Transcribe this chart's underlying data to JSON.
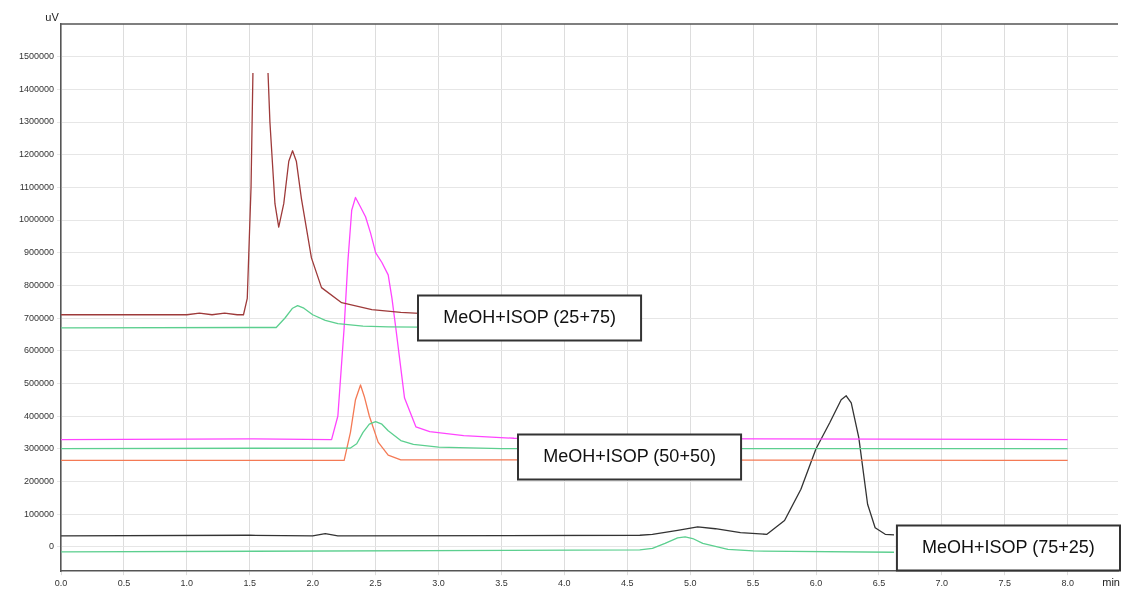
{
  "chart_data": {
    "type": "line",
    "xlabel": "min",
    "ylabel": "uV",
    "grid": true,
    "marker": "none",
    "line_style": "solid",
    "xlim": [
      0,
      8.4
    ],
    "ylim": [
      -75000,
      1600000
    ],
    "xticks": [
      {
        "value": 0,
        "label": "0.0"
      },
      0.5,
      {
        "value": 1,
        "label": "1.0"
      },
      1.5,
      {
        "value": 2,
        "label": "2.0"
      },
      2.5,
      {
        "value": 3,
        "label": "3.0"
      },
      3.5,
      {
        "value": 4,
        "label": "4.0"
      },
      4.5,
      {
        "value": 5,
        "label": "5.0"
      },
      5.5,
      {
        "value": 6,
        "label": "6.0"
      },
      6.5,
      {
        "value": 7,
        "label": "7.0"
      },
      7.5,
      {
        "value": 8,
        "label": "8.0"
      }
    ],
    "yticks": [
      0,
      100000,
      200000,
      300000,
      400000,
      500000,
      600000,
      700000,
      800000,
      900000,
      1000000,
      1100000,
      1200000,
      1300000,
      1400000,
      1500000
    ],
    "annotations": [
      "MeOH+ISOP (25+75)",
      "MeOH+ISOP (50+50)",
      "MeOH+ISOP (75+25)"
    ],
    "series": [
      {
        "color": "#9e3a3a",
        "x": [
          0,
          1.0,
          1.1,
          1.2,
          1.3,
          1.4,
          1.45,
          1.48,
          1.51,
          1.525,
          1.58,
          1.645,
          1.66,
          1.7,
          1.73,
          1.77,
          1.81,
          1.84,
          1.87,
          1.91,
          1.99,
          2.07,
          2.23,
          2.47,
          2.7,
          2.85
        ],
        "values": [
          710000,
          710000,
          715000,
          710000,
          715000,
          710000,
          710000,
          760000,
          1100000,
          1450000,
          null,
          1450000,
          1300000,
          1050000,
          978000,
          1050000,
          1180000,
          1212000,
          1180000,
          1066000,
          884000,
          793000,
          747000,
          726000,
          717000,
          714000
        ]
      },
      {
        "color": "#5ccf8f",
        "x": [
          0,
          1.5,
          1.71,
          1.78,
          1.84,
          1.88,
          1.93,
          2.0,
          2.1,
          2.2,
          2.4,
          2.6,
          2.85
        ],
        "values": [
          670000,
          671000,
          671000,
          700000,
          730000,
          738000,
          730000,
          710000,
          693000,
          683000,
          675000,
          673000,
          672000
        ]
      },
      {
        "color": "#ff44ff",
        "x": [
          0,
          1.5,
          2.15,
          2.2,
          2.25,
          2.28,
          2.31,
          2.34,
          2.38,
          2.42,
          2.46,
          2.5,
          2.55,
          2.6,
          2.63,
          2.66,
          2.73,
          2.82,
          2.93,
          3.2,
          3.6,
          8.0
        ],
        "values": [
          328000,
          330000,
          328000,
          400000,
          671000,
          875000,
          1030000,
          1069000,
          1040000,
          1010000,
          960000,
          900000,
          870000,
          832000,
          760000,
          671000,
          455000,
          367000,
          352000,
          340000,
          332000,
          328000
        ]
      },
      {
        "color": "#5ccf8f",
        "x": [
          0,
          2.3,
          2.35,
          2.4,
          2.45,
          2.5,
          2.55,
          2.6,
          2.7,
          2.8,
          3.0,
          3.5,
          8.0
        ],
        "values": [
          300000,
          302000,
          315000,
          350000,
          375000,
          383000,
          375000,
          355000,
          325000,
          313000,
          305000,
          300000,
          300000
        ]
      },
      {
        "color": "#f47a55",
        "x": [
          0,
          2.25,
          2.3,
          2.34,
          2.38,
          2.41,
          2.45,
          2.52,
          2.6,
          2.7,
          8.0
        ],
        "values": [
          264000,
          264000,
          350000,
          450000,
          495000,
          460000,
          400000,
          320000,
          280000,
          266000,
          264000
        ]
      },
      {
        "color": "#333333",
        "x": [
          0,
          1.5,
          2.0,
          2.1,
          2.2,
          4.6,
          4.7,
          4.9,
          5.06,
          5.2,
          5.4,
          5.61,
          5.75,
          5.88,
          6.0,
          6.11,
          6.2,
          6.24,
          6.28,
          6.34,
          6.41,
          6.47,
          6.55,
          6.62
        ],
        "values": [
          33000,
          35000,
          33000,
          40000,
          33000,
          35000,
          38000,
          50000,
          61000,
          55000,
          43000,
          38000,
          80000,
          176000,
          300000,
          380000,
          450000,
          462000,
          440000,
          334000,
          130000,
          58000,
          38000,
          36000
        ]
      },
      {
        "color": "#5ccf8f",
        "x": [
          0,
          4.6,
          4.7,
          4.8,
          4.9,
          4.96,
          5.02,
          5.1,
          5.3,
          5.5,
          6.62
        ],
        "values": [
          -16000,
          -10000,
          -5000,
          10000,
          27000,
          30000,
          25000,
          10000,
          -8000,
          -13000,
          -17000
        ]
      }
    ]
  }
}
